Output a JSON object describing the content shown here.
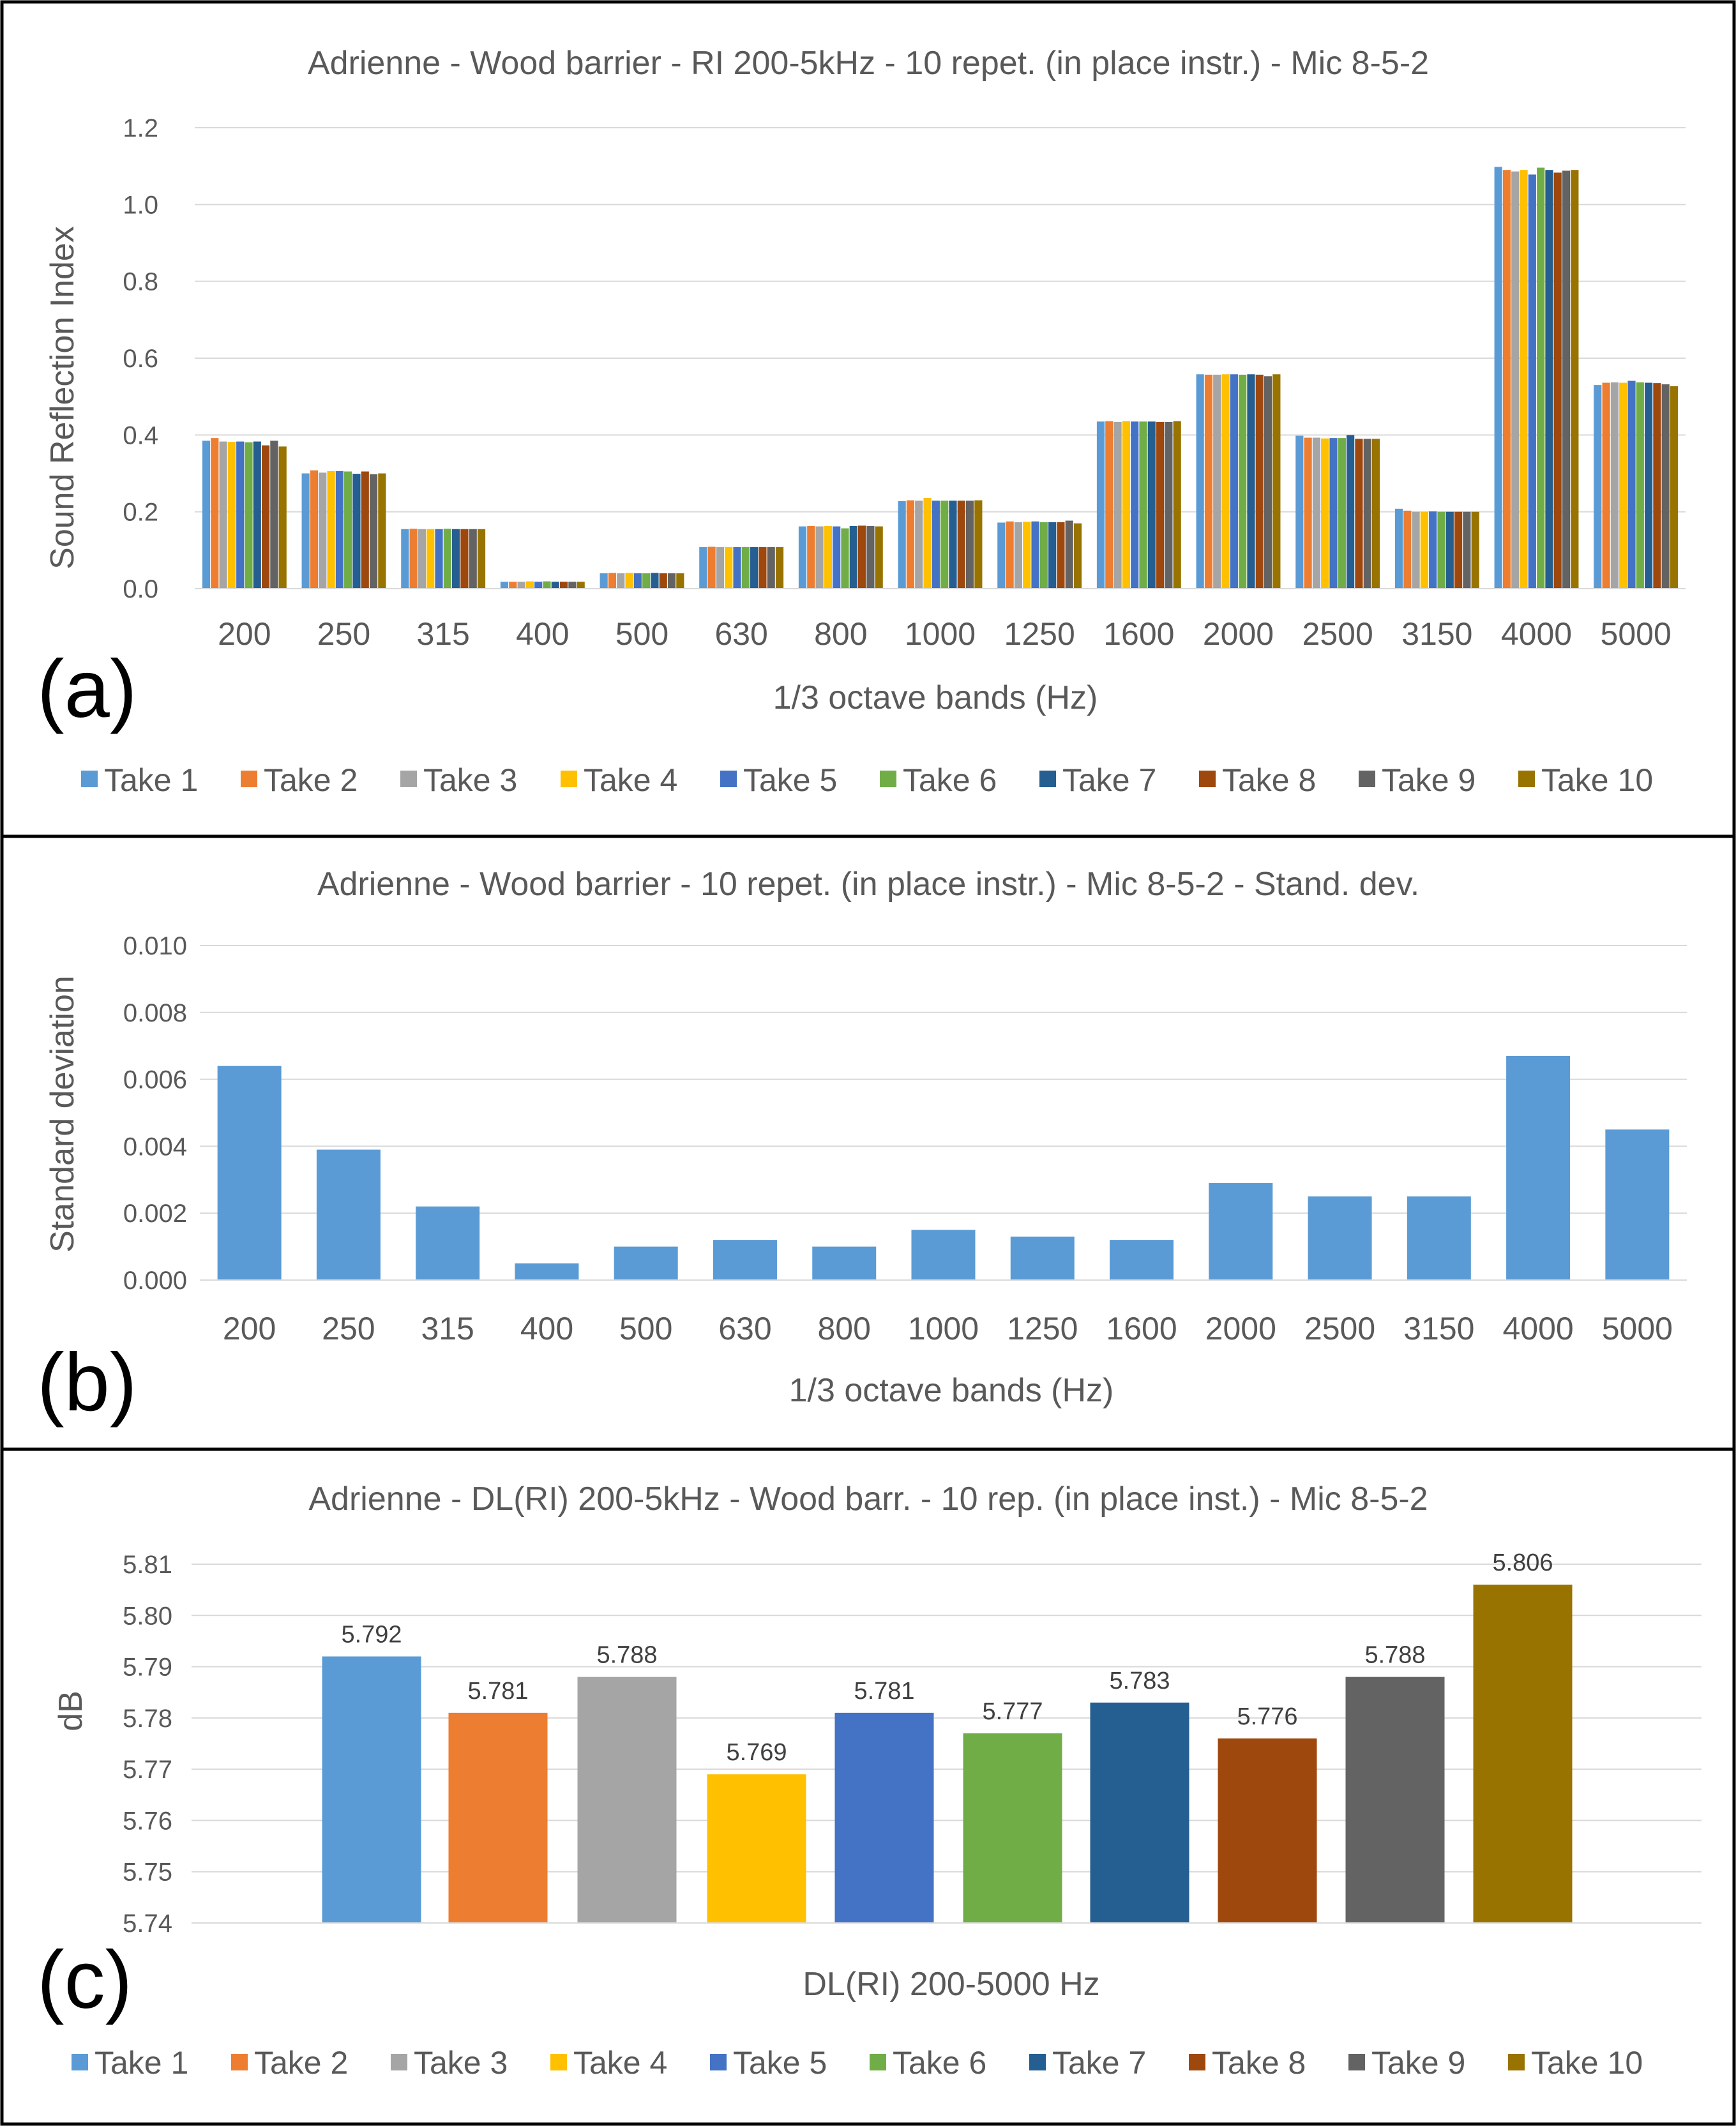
{
  "colors": {
    "take_1": "#5b9bd5",
    "take_2": "#ed7d31",
    "take_3": "#a5a5a5",
    "take_4": "#ffc000",
    "take_5": "#4472c4",
    "take_6": "#70ad47",
    "take_7": "#255e91",
    "take_8": "#9e480e",
    "take_9": "#636363",
    "take_10": "#997300",
    "gridline": "#d9d9d9",
    "text": "#595959",
    "border": "#000000"
  },
  "legend": [
    "Take 1",
    "Take 2",
    "Take 3",
    "Take 4",
    "Take 5",
    "Take 6",
    "Take 7",
    "Take 8",
    "Take 9",
    "Take 10"
  ],
  "chart_data": [
    {
      "panel_label": "(a)",
      "type": "bar",
      "title": "Adrienne - Wood barrier - RI 200-5kHz - 10 repet. (in place instr.) - Mic 8-5-2",
      "xlabel": "1/3 octave bands (Hz)",
      "ylabel": "Sound Reflection Index",
      "ylim": [
        0,
        1.2
      ],
      "yticks": [
        0.0,
        0.2,
        0.4,
        0.6,
        0.8,
        1.0,
        1.2
      ],
      "ytick_labels": [
        "0.0",
        "0.2",
        "0.4",
        "0.6",
        "0.8",
        "1.0",
        "1.2"
      ],
      "grid": true,
      "legend_position": "bottom",
      "categories": [
        "200",
        "250",
        "315",
        "400",
        "500",
        "630",
        "800",
        "1000",
        "1250",
        "1600",
        "2000",
        "2500",
        "3150",
        "4000",
        "5000"
      ],
      "series": [
        {
          "name": "Take 1",
          "values": [
            0.385,
            0.3,
            0.155,
            0.018,
            0.04,
            0.108,
            0.162,
            0.228,
            0.172,
            0.435,
            0.558,
            0.398,
            0.208,
            1.098,
            0.53
          ]
        },
        {
          "name": "Take 2",
          "values": [
            0.392,
            0.308,
            0.156,
            0.018,
            0.041,
            0.109,
            0.163,
            0.23,
            0.175,
            0.436,
            0.557,
            0.393,
            0.203,
            1.09,
            0.536
          ]
        },
        {
          "name": "Take 3",
          "values": [
            0.383,
            0.302,
            0.155,
            0.018,
            0.04,
            0.108,
            0.162,
            0.229,
            0.173,
            0.434,
            0.557,
            0.393,
            0.2,
            1.086,
            0.537
          ]
        },
        {
          "name": "Take 4",
          "values": [
            0.382,
            0.306,
            0.155,
            0.019,
            0.041,
            0.108,
            0.163,
            0.236,
            0.174,
            0.436,
            0.558,
            0.391,
            0.2,
            1.09,
            0.536
          ]
        },
        {
          "name": "Take 5",
          "values": [
            0.383,
            0.306,
            0.155,
            0.018,
            0.04,
            0.108,
            0.162,
            0.229,
            0.175,
            0.435,
            0.558,
            0.392,
            0.201,
            1.078,
            0.541
          ]
        },
        {
          "name": "Take 6",
          "values": [
            0.381,
            0.305,
            0.156,
            0.019,
            0.04,
            0.108,
            0.157,
            0.229,
            0.173,
            0.435,
            0.557,
            0.392,
            0.2,
            1.096,
            0.537
          ]
        },
        {
          "name": "Take 7",
          "values": [
            0.383,
            0.299,
            0.155,
            0.018,
            0.041,
            0.108,
            0.163,
            0.229,
            0.173,
            0.435,
            0.558,
            0.4,
            0.2,
            1.09,
            0.536
          ]
        },
        {
          "name": "Take 8",
          "values": [
            0.373,
            0.305,
            0.155,
            0.018,
            0.04,
            0.108,
            0.164,
            0.229,
            0.173,
            0.434,
            0.557,
            0.39,
            0.2,
            1.083,
            0.535
          ]
        },
        {
          "name": "Take 9",
          "values": [
            0.385,
            0.298,
            0.155,
            0.018,
            0.04,
            0.108,
            0.163,
            0.229,
            0.177,
            0.434,
            0.553,
            0.39,
            0.2,
            1.088,
            0.532
          ]
        },
        {
          "name": "Take 10",
          "values": [
            0.37,
            0.3,
            0.155,
            0.018,
            0.04,
            0.108,
            0.162,
            0.23,
            0.17,
            0.436,
            0.558,
            0.39,
            0.2,
            1.09,
            0.527
          ]
        }
      ]
    },
    {
      "panel_label": "(b)",
      "type": "bar",
      "title": "Adrienne - Wood barrier - 10 repet. (in place instr.) - Mic 8-5-2 - Stand. dev.",
      "xlabel": "1/3 octave bands (Hz)",
      "ylabel": "Standard deviation",
      "ylim": [
        0,
        0.01
      ],
      "yticks": [
        0.0,
        0.002,
        0.004,
        0.006,
        0.008,
        0.01
      ],
      "ytick_labels": [
        "0.000",
        "0.002",
        "0.004",
        "0.006",
        "0.008",
        "0.010"
      ],
      "grid": true,
      "categories": [
        "200",
        "250",
        "315",
        "400",
        "500",
        "630",
        "800",
        "1000",
        "1250",
        "1600",
        "2000",
        "2500",
        "3150",
        "4000",
        "5000"
      ],
      "series": [
        {
          "name": "Standard deviation",
          "values": [
            0.0064,
            0.0039,
            0.0022,
            0.0005,
            0.001,
            0.0012,
            0.001,
            0.0015,
            0.0013,
            0.0012,
            0.0029,
            0.0025,
            0.0025,
            0.0067,
            0.0045
          ]
        }
      ]
    },
    {
      "panel_label": "(c)",
      "type": "bar",
      "title": "Adrienne - DL(RI) 200-5kHz - Wood barr. - 10 rep. (in place inst.) - Mic 8-5-2",
      "xlabel": "DL(RI) 200-5000 Hz",
      "ylabel": "dB",
      "ylim": [
        5.74,
        5.81
      ],
      "yticks": [
        5.74,
        5.75,
        5.76,
        5.77,
        5.78,
        5.79,
        5.8,
        5.81
      ],
      "ytick_labels": [
        "5.74",
        "5.75",
        "5.76",
        "5.77",
        "5.78",
        "5.79",
        "5.80",
        "5.81"
      ],
      "grid": true,
      "legend_position": "bottom",
      "categories": [
        "Take 1",
        "Take 2",
        "Take 3",
        "Take 4",
        "Take 5",
        "Take 6",
        "Take 7",
        "Take 8",
        "Take 9",
        "Take 10"
      ],
      "values": [
        5.792,
        5.781,
        5.788,
        5.769,
        5.781,
        5.777,
        5.783,
        5.776,
        5.788,
        5.806
      ],
      "data_labels": [
        "5.792",
        "5.781",
        "5.788",
        "5.769",
        "5.781",
        "5.777",
        "5.783",
        "5.776",
        "5.788",
        "5.806"
      ]
    }
  ]
}
